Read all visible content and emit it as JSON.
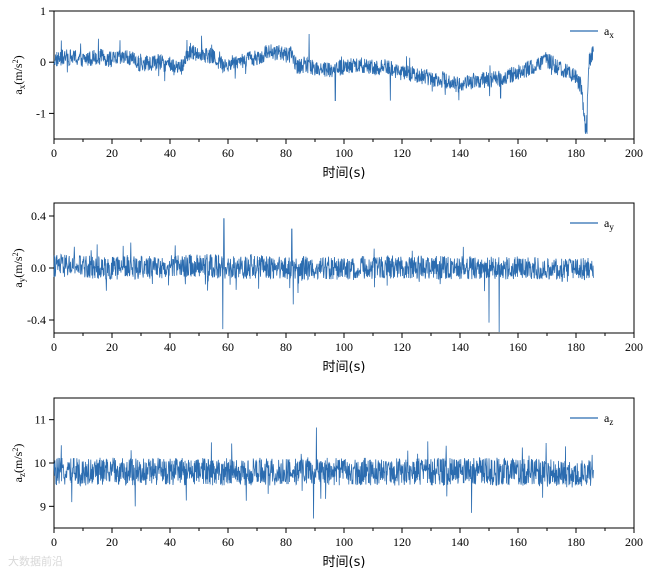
{
  "chart_data": [
    {
      "type": "line",
      "xlabel": "时间(s)",
      "ylabel": "a",
      "ylabel_sub": "x",
      "ylabel_unit": "(m/s",
      "ylabel_unit_sup": "2",
      "ylabel_unit_end": ")",
      "xlim": [
        0,
        200
      ],
      "ylim": [
        -1.5,
        1.0
      ],
      "xticks": [
        "0",
        "20",
        "40",
        "60",
        "80",
        "100",
        "120",
        "140",
        "160",
        "180",
        "200"
      ],
      "yticks": [
        "1",
        "0",
        "-1"
      ],
      "ytick_values": [
        1,
        0,
        -1
      ],
      "color": "#2b6cb0",
      "grid": false,
      "legend_position": "top-right",
      "series": [
        {
          "name": "a",
          "name_sub": "x",
          "x": [
            0,
            5,
            10,
            15,
            20,
            25,
            30,
            35,
            40,
            44,
            46,
            50,
            55,
            58,
            62,
            66,
            70,
            75,
            80,
            82,
            84,
            86,
            90,
            95,
            100,
            105,
            110,
            115,
            120,
            125,
            130,
            135,
            140,
            145,
            150,
            155,
            160,
            165,
            170,
            175,
            180,
            182,
            183.5,
            184.5,
            186
          ],
          "values": [
            0.05,
            0.1,
            0.05,
            0.12,
            0.05,
            0.1,
            -0.05,
            0.0,
            -0.05,
            -0.1,
            0.15,
            0.2,
            0.1,
            -0.05,
            0.0,
            0.05,
            0.1,
            0.2,
            0.15,
            0.15,
            -0.1,
            -0.05,
            -0.1,
            -0.15,
            -0.1,
            -0.05,
            -0.1,
            -0.1,
            -0.2,
            -0.25,
            -0.3,
            -0.35,
            -0.45,
            -0.35,
            -0.35,
            -0.3,
            -0.2,
            -0.1,
            0.05,
            -0.15,
            -0.3,
            -0.5,
            -1.4,
            0.0,
            0.2
          ],
          "noise_amplitude": 0.16,
          "spikes": [
            {
              "x": 183.8,
              "y": -1.4
            },
            {
              "x": 88,
              "y": 0.55
            },
            {
              "x": 97,
              "y": -0.75
            },
            {
              "x": 116,
              "y": -0.75
            },
            {
              "x": 154,
              "y": -0.7
            }
          ]
        }
      ]
    },
    {
      "type": "line",
      "xlabel": "时间(s)",
      "ylabel": "a",
      "ylabel_sub": "y",
      "ylabel_unit": "(m/s",
      "ylabel_unit_sup": "2",
      "ylabel_unit_end": ")",
      "xlim": [
        0,
        200
      ],
      "ylim": [
        -0.5,
        0.5
      ],
      "xticks": [
        "0",
        "20",
        "40",
        "60",
        "80",
        "100",
        "120",
        "140",
        "160",
        "180",
        "200"
      ],
      "yticks": [
        "0.4",
        "0.0",
        "-0.4"
      ],
      "ytick_values": [
        0.4,
        0.0,
        -0.4
      ],
      "color": "#2b6cb0",
      "grid": false,
      "legend_position": "top-right",
      "series": [
        {
          "name": "a",
          "name_sub": "y",
          "x": [
            0,
            20,
            40,
            55,
            58,
            60,
            75,
            82,
            84,
            86,
            100,
            120,
            140,
            160,
            180,
            186
          ],
          "values": [
            0.02,
            0.0,
            0.01,
            0.02,
            0.0,
            0.0,
            0.01,
            0.0,
            -0.05,
            0.0,
            0.0,
            0.01,
            0.0,
            0.0,
            -0.02,
            0.0
          ],
          "noise_amplitude": 0.09,
          "spikes": [
            {
              "x": 58.2,
              "y": -0.47
            },
            {
              "x": 58.6,
              "y": 0.38
            },
            {
              "x": 153.5,
              "y": -0.5
            },
            {
              "x": 150,
              "y": -0.42
            },
            {
              "x": 82,
              "y": 0.3
            },
            {
              "x": 82.5,
              "y": -0.28
            }
          ]
        }
      ]
    },
    {
      "type": "line",
      "xlabel": "时间(s)",
      "ylabel": "a",
      "ylabel_sub": "z",
      "ylabel_unit": "(m/s",
      "ylabel_unit_sup": "2",
      "ylabel_unit_end": ")",
      "xlim": [
        0,
        200
      ],
      "ylim": [
        8.5,
        11.5
      ],
      "xticks": [
        "0",
        "20",
        "40",
        "60",
        "80",
        "100",
        "120",
        "140",
        "160",
        "180",
        "200"
      ],
      "yticks": [
        "11",
        "10",
        "9"
      ],
      "ytick_values": [
        11,
        10,
        9
      ],
      "color": "#2b6cb0",
      "grid": false,
      "legend_position": "top-right",
      "series": [
        {
          "name": "a",
          "name_sub": "z",
          "x": [
            0,
            20,
            40,
            60,
            80,
            82,
            84,
            86,
            90,
            100,
            120,
            140,
            160,
            180,
            186
          ],
          "values": [
            9.8,
            9.8,
            9.8,
            9.8,
            9.8,
            9.75,
            9.8,
            9.85,
            9.8,
            9.8,
            9.8,
            9.8,
            9.8,
            9.75,
            9.75
          ],
          "noise_amplitude": 0.32,
          "spikes": [
            {
              "x": 89.5,
              "y": 8.72
            },
            {
              "x": 90.5,
              "y": 10.82
            },
            {
              "x": 144,
              "y": 8.85
            },
            {
              "x": 28,
              "y": 9.0
            }
          ]
        }
      ]
    }
  ],
  "watermark": "大数据前沿"
}
